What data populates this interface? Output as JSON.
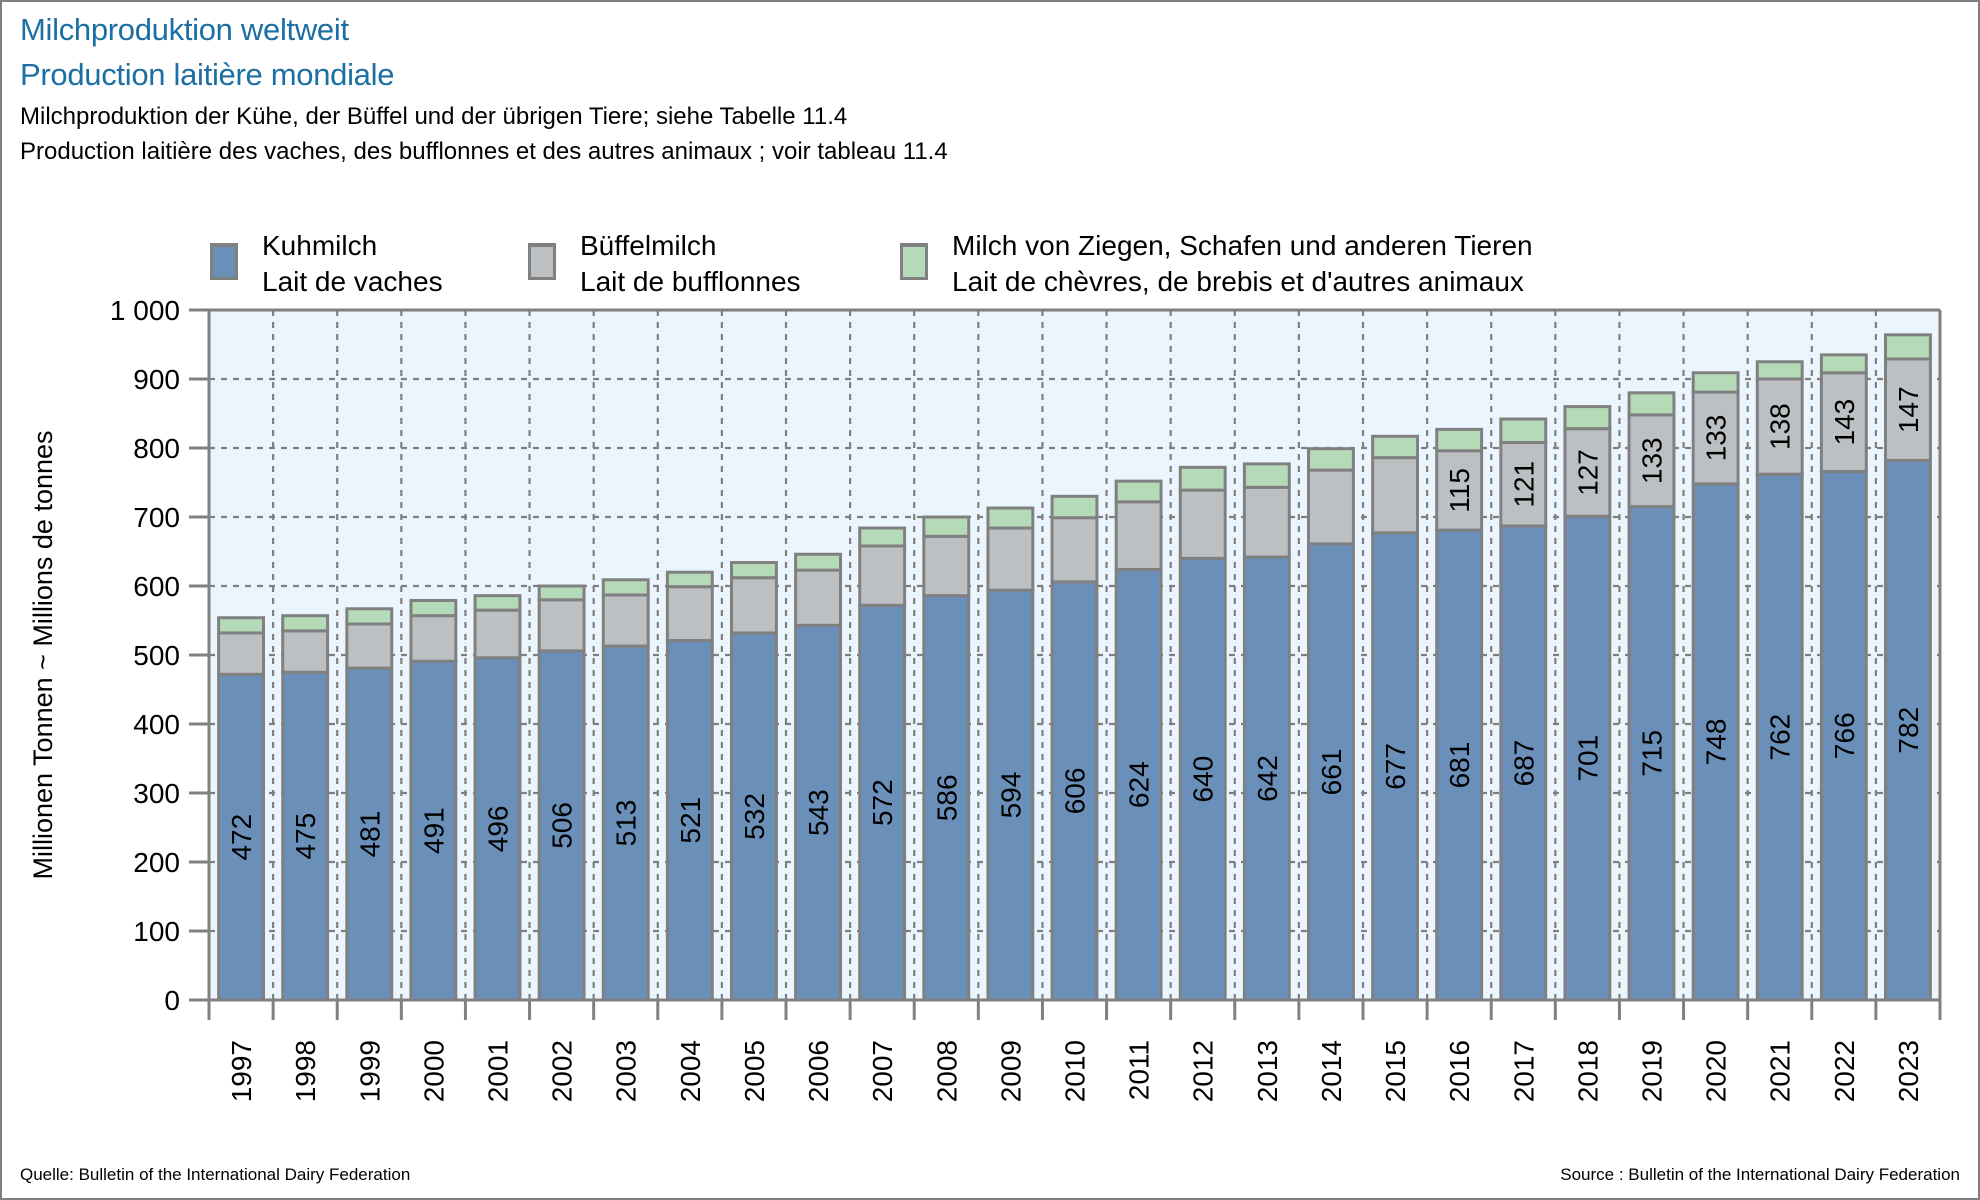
{
  "header": {
    "title_de": "Milchproduktion weltweit",
    "title_fr": "Production laitière mondiale",
    "subtitle_de": "Milchproduktion der Kühe, der Büffel und der übrigen Tiere; siehe Tabelle 11.4",
    "subtitle_fr": "Production laitière des vaches, des bufflonnes et des autres animaux ; voir tableau 11.4"
  },
  "legend": [
    {
      "label_de": "Kuhmilch",
      "label_fr": "Lait de vaches",
      "color": "#6a8fb8"
    },
    {
      "label_de": "Büffelmilch",
      "label_fr": "Lait de bufflonnes",
      "color": "#bdc0c3"
    },
    {
      "label_de": "Milch von Ziegen, Schafen und anderen Tieren",
      "label_fr": "Lait de chèvres, de brebis et d'autres animaux",
      "color": "#b5dab8"
    }
  ],
  "footer": {
    "source_de": "Quelle: Bulletin of the International Dairy Federation",
    "source_fr": "Source : Bulletin of the International Dairy Federation"
  },
  "chart_data": {
    "type": "bar",
    "stacked": true,
    "title": "Milchproduktion weltweit / Production laitière mondiale",
    "xlabel": "",
    "ylabel": "Millionen Tonnen ~ Millions de tonnes",
    "ylim": [
      0,
      1000
    ],
    "yticks": [
      0,
      100,
      200,
      300,
      400,
      500,
      600,
      700,
      800,
      900,
      1000
    ],
    "ytick_labels": [
      "0",
      "100",
      "200",
      "300",
      "400",
      "500",
      "600",
      "700",
      "800",
      "900",
      "1 000"
    ],
    "grid": true,
    "legend_position": "top",
    "categories": [
      "1997",
      "1998",
      "1999",
      "2000",
      "2001",
      "2002",
      "2003",
      "2004",
      "2005",
      "2006",
      "2007",
      "2008",
      "2009",
      "2010",
      "2011",
      "2012",
      "2013",
      "2014",
      "2015",
      "2016",
      "2017",
      "2018",
      "2019",
      "2020",
      "2021",
      "2022",
      "2023"
    ],
    "series": [
      {
        "name": "Kuhmilch / Lait de vaches",
        "color": "#6a8fb8",
        "values": [
          472,
          475,
          481,
          491,
          496,
          506,
          513,
          521,
          532,
          543,
          572,
          586,
          594,
          606,
          624,
          640,
          642,
          661,
          677,
          681,
          687,
          701,
          715,
          748,
          762,
          766,
          782
        ],
        "labeled": [
          true,
          true,
          true,
          true,
          true,
          true,
          true,
          true,
          true,
          true,
          true,
          true,
          true,
          true,
          true,
          true,
          true,
          true,
          true,
          true,
          true,
          true,
          true,
          true,
          true,
          true,
          true
        ]
      },
      {
        "name": "Büffelmilch / Lait de bufflonnes",
        "color": "#bdc0c3",
        "values": [
          60,
          60,
          64,
          66,
          69,
          74,
          74,
          78,
          80,
          80,
          86,
          86,
          90,
          93,
          98,
          99,
          101,
          107,
          109,
          115,
          121,
          127,
          133,
          133,
          138,
          143,
          147
        ],
        "labeled": [
          false,
          false,
          false,
          false,
          false,
          false,
          false,
          false,
          false,
          false,
          false,
          false,
          false,
          false,
          false,
          false,
          false,
          false,
          false,
          true,
          true,
          true,
          true,
          true,
          true,
          true,
          true
        ]
      },
      {
        "name": "Milch von Ziegen, Schafen und anderen Tieren / Lait de chèvres, de brebis et d'autres animaux",
        "color": "#b5dab8",
        "values": [
          22,
          22,
          22,
          22,
          21,
          20,
          22,
          21,
          22,
          23,
          26,
          28,
          29,
          31,
          30,
          33,
          34,
          31,
          31,
          31,
          34,
          32,
          32,
          28,
          25,
          26,
          35
        ],
        "labeled": [
          false,
          false,
          false,
          false,
          false,
          false,
          false,
          false,
          false,
          false,
          false,
          false,
          false,
          false,
          false,
          false,
          false,
          false,
          false,
          false,
          false,
          false,
          false,
          false,
          false,
          false,
          false
        ]
      }
    ]
  }
}
